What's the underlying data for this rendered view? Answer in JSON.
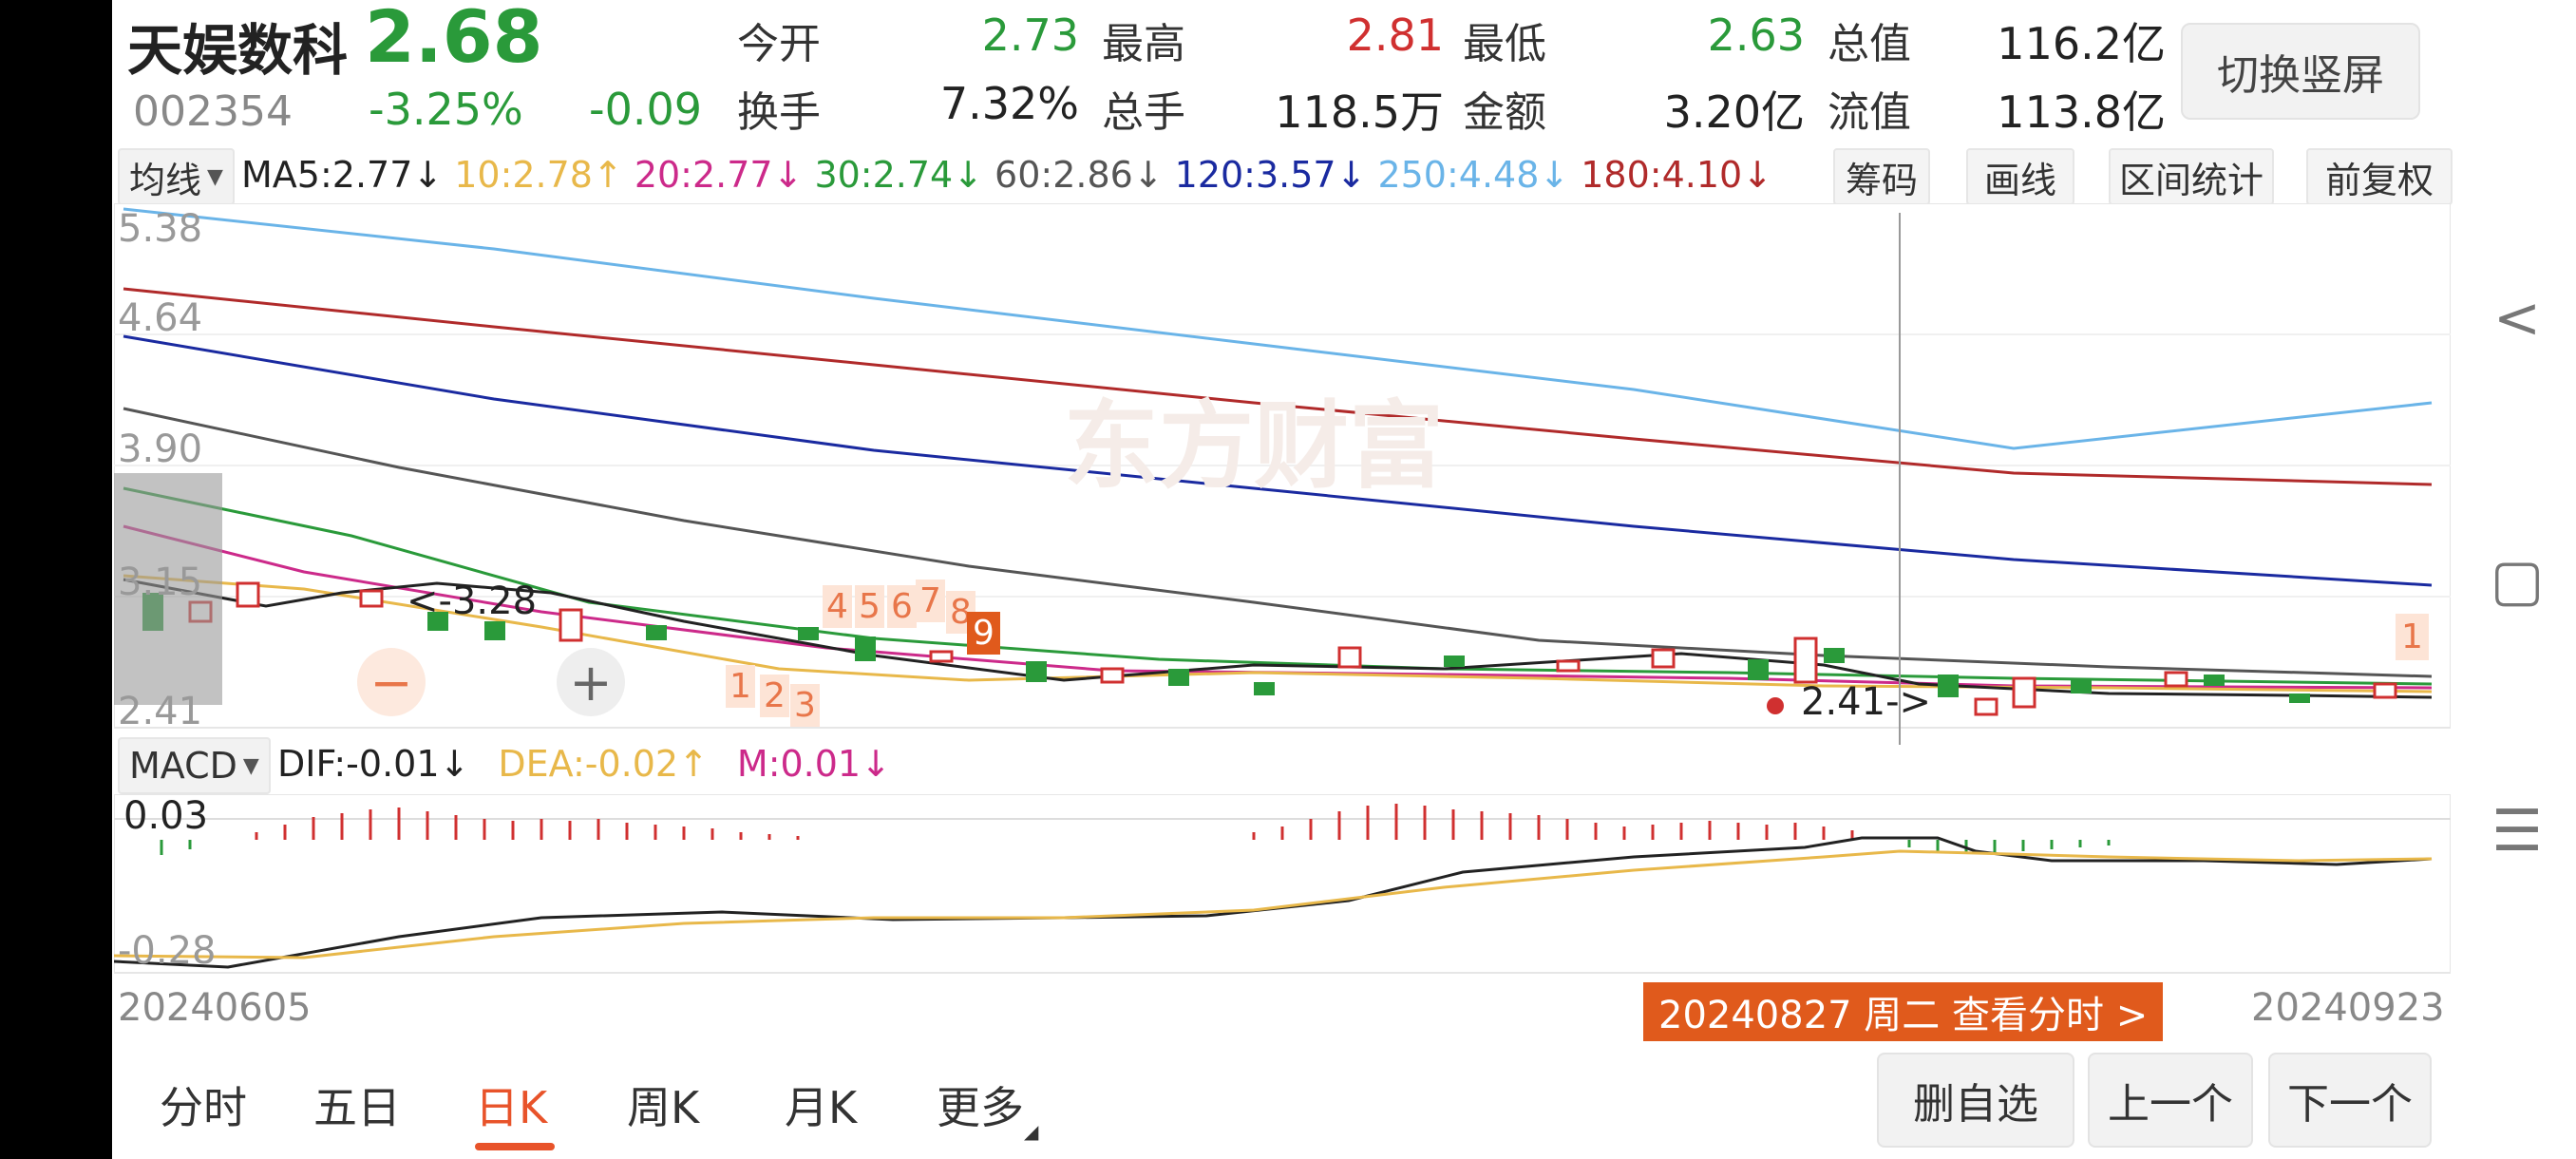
{
  "stock": {
    "name": "天娱数科",
    "price": "2.68",
    "code": "002354",
    "change_pct": "-3.25%",
    "change": "-0.09"
  },
  "quote": {
    "open_label": "今开",
    "open": "2.73",
    "high_label": "最高",
    "high": "2.81",
    "low_label": "最低",
    "low": "2.63",
    "mktcap_label": "总值",
    "mktcap": "116.2亿",
    "turnover_label": "换手",
    "turnover": "7.32%",
    "volume_label": "总手",
    "volume": "118.5万",
    "amount_label": "金额",
    "amount": "3.20亿",
    "float_label": "流值",
    "float": "113.8亿"
  },
  "switch_button": "切换竖屏",
  "ma_legend": {
    "selector": "均线",
    "items": [
      {
        "text": "MA5:2.77↓",
        "color": "#222222"
      },
      {
        "text": "10:2.78↑",
        "color": "#e8b84a"
      },
      {
        "text": "20:2.77↓",
        "color": "#cc2a8a"
      },
      {
        "text": "30:2.74↓",
        "color": "#2a9a3a"
      },
      {
        "text": "60:2.86↓",
        "color": "#555555"
      },
      {
        "text": "120:3.57↓",
        "color": "#1a2aa0"
      },
      {
        "text": "250:4.48↓",
        "color": "#6ab4e8"
      },
      {
        "text": "180:4.10↓",
        "color": "#b02a2a"
      }
    ]
  },
  "tools": [
    "筹码",
    "画线",
    "区间统计",
    "前复权"
  ],
  "chart": {
    "y_labels": [
      "5.38",
      "4.64",
      "3.90",
      "3.15",
      "2.41"
    ],
    "high_marker": "3.28",
    "low_marker": "2.41",
    "signal_numbers": [
      "1",
      "2",
      "3",
      "4",
      "5",
      "6",
      "7",
      "8",
      "9",
      "1"
    ],
    "watermark": "东方财富"
  },
  "macd_legend": {
    "selector": "MACD",
    "dif": "DIF:-0.01↓",
    "dea": "DEA:-0.02↑",
    "m": "M:0.01↓",
    "y_top": "0.03",
    "y_bottom": "-0.28"
  },
  "dates": {
    "start": "20240605",
    "end": "20240923",
    "tooltip": "20240827 周二 查看分时 >"
  },
  "tabs": [
    "分时",
    "五日",
    "日K",
    "周K",
    "月K",
    "更多"
  ],
  "buttons": {
    "remove": "删自选",
    "prev": "上一个",
    "next": "下一个"
  },
  "colors": {
    "up": "#d03030",
    "down": "#2a9a3a",
    "accent": "#e8532a"
  }
}
